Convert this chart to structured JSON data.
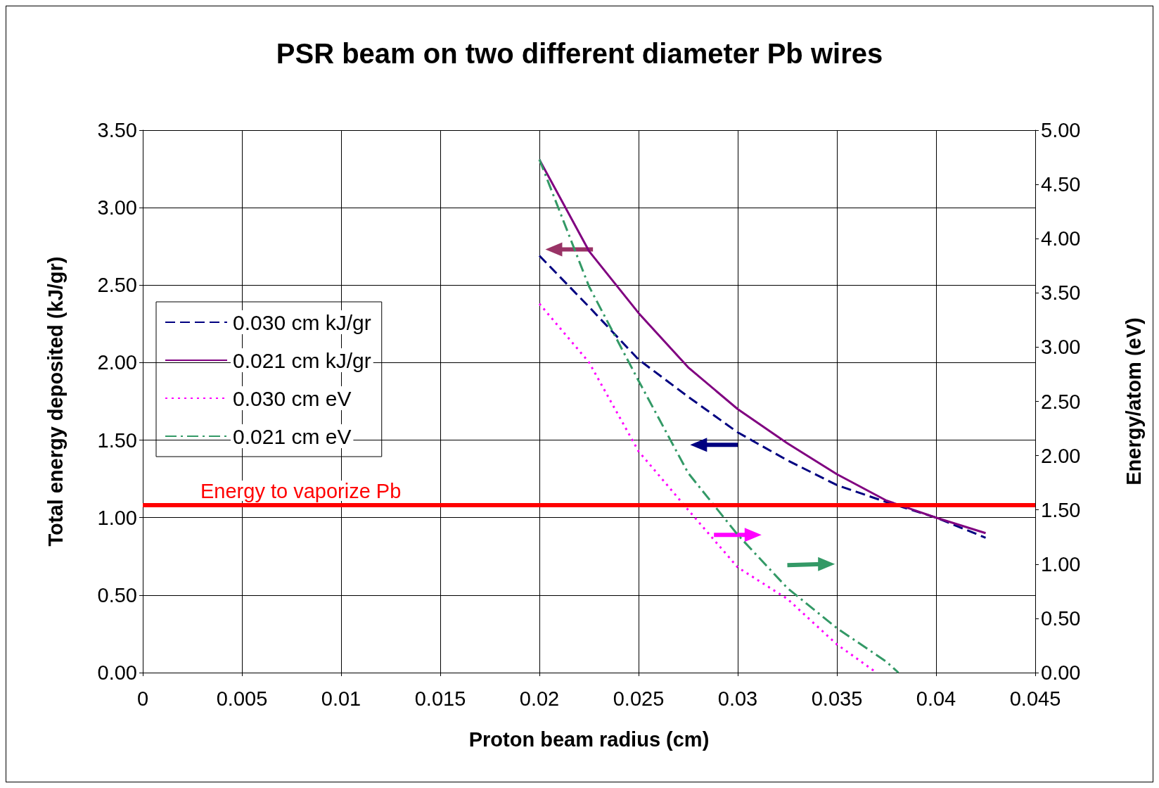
{
  "chart_data": {
    "type": "line",
    "title": "PSR beam on two different diameter Pb wires",
    "xlabel": "Proton beam radius (cm)",
    "ylabel": "Total energy deposited (kJ/gr)",
    "y2label": "Energy/atom (eV)",
    "x": [
      0.02,
      0.0225,
      0.025,
      0.0275,
      0.03,
      0.0325,
      0.035,
      0.0375,
      0.04,
      0.0425
    ],
    "series": [
      {
        "name": "0.030 cm kJ/gr",
        "color": "#000080",
        "line_style": "dashed",
        "values": [
          2.69,
          2.36,
          2.02,
          1.78,
          1.55,
          1.37,
          1.21,
          1.1,
          1.0,
          0.87
        ]
      },
      {
        "name": "0.021 cm kJ/gr",
        "color": "#800080",
        "line_style": "solid",
        "values": [
          3.31,
          2.72,
          2.32,
          1.97,
          1.7,
          1.48,
          1.28,
          1.11,
          1.0,
          0.9
        ]
      },
      {
        "name": "0.030 cm eV",
        "color": "#ff00ff",
        "line_style": "dotted",
        "axis": "y2",
        "x": [
          0.02,
          0.0225,
          0.025,
          0.0275,
          0.03,
          0.0325,
          0.035,
          0.037
        ],
        "values": [
          3.4,
          2.86,
          2.04,
          1.5,
          0.97,
          0.68,
          0.26,
          0.0
        ]
      },
      {
        "name": "0.021 cm eV",
        "color": "#339966",
        "line_style": "dashdot",
        "axis": "y2",
        "x": [
          0.02,
          0.0225,
          0.025,
          0.0275,
          0.03,
          0.0325,
          0.035,
          0.0375,
          0.0381
        ],
        "values": [
          4.73,
          3.56,
          2.69,
          1.84,
          1.27,
          0.78,
          0.41,
          0.1,
          0.0
        ]
      }
    ],
    "xlim": [
      0,
      0.045
    ],
    "xticks": [
      0,
      0.005,
      0.01,
      0.015,
      0.02,
      0.025,
      0.03,
      0.035,
      0.04,
      0.045
    ],
    "ylim": [
      0,
      3.5
    ],
    "yticks": [
      {
        "value": 0,
        "label": "0.00"
      },
      {
        "value": 0.5,
        "label": "0.50"
      },
      {
        "value": 1,
        "label": "1.00"
      },
      {
        "value": 1.5,
        "label": "1.50"
      },
      {
        "value": 2,
        "label": "2.00"
      },
      {
        "value": 2.5,
        "label": "2.50"
      },
      {
        "value": 3,
        "label": "3.00"
      },
      {
        "value": 3.5,
        "label": "3.50"
      }
    ],
    "y2lim": [
      0,
      5
    ],
    "y2ticks": [
      {
        "value": 0,
        "label": "0.00"
      },
      {
        "value": 0.5,
        "label": "0.50"
      },
      {
        "value": 1,
        "label": "1.00"
      },
      {
        "value": 1.5,
        "label": "1.50"
      },
      {
        "value": 2,
        "label": "2.00"
      },
      {
        "value": 2.5,
        "label": "2.50"
      },
      {
        "value": 3,
        "label": "3.00"
      },
      {
        "value": 3.5,
        "label": "3.50"
      },
      {
        "value": 4,
        "label": "4.00"
      },
      {
        "value": 4.5,
        "label": "4.50"
      },
      {
        "value": 5,
        "label": "5.00"
      }
    ],
    "ref_lines": [
      {
        "axis": "y",
        "value": 1.08,
        "label": "Energy to vaporize Pb",
        "color": "#ff0000"
      }
    ],
    "grid": true,
    "legend": "left",
    "marker": "none"
  }
}
